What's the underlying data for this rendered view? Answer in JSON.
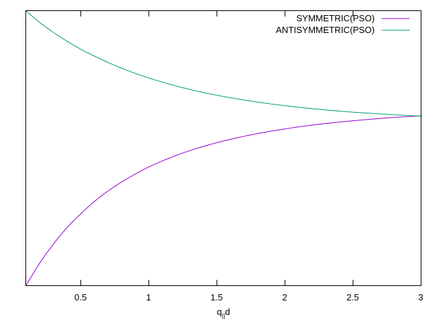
{
  "chart_data": {
    "type": "line",
    "title": "",
    "xlabel": "q",
    "xlabel_subscript": "||",
    "xlabel_suffix": "d",
    "ylabel": "",
    "xlim": [
      0.1,
      3.0
    ],
    "ylim": [
      0,
      1
    ],
    "xticks": [
      0.5,
      1,
      1.5,
      2,
      2.5,
      3
    ],
    "xtick_labels": [
      "0.5",
      "1",
      "1.5",
      "2",
      "2.5",
      "3"
    ],
    "yticks_visible": false,
    "grid": false,
    "legend_position": "top-right",
    "series": [
      {
        "name": "SYMMETRIC(PSO)",
        "color": "#9400d3",
        "x": [
          0.1,
          0.2,
          0.3,
          0.4,
          0.5,
          0.6,
          0.7,
          0.8,
          0.9,
          1.0,
          1.2,
          1.4,
          1.6,
          1.8,
          2.0,
          2.2,
          2.4,
          2.6,
          2.8,
          3.0
        ],
        "y": [
          0.0,
          0.081,
          0.15,
          0.21,
          0.26,
          0.305,
          0.343,
          0.376,
          0.405,
          0.431,
          0.473,
          0.506,
          0.532,
          0.553,
          0.57,
          0.584,
          0.595,
          0.604,
          0.612,
          0.618
        ]
      },
      {
        "name": "ANTISYMMETRIC(PSO)",
        "color": "#009e73",
        "x": [
          0.1,
          0.2,
          0.3,
          0.4,
          0.5,
          0.6,
          0.7,
          0.8,
          0.9,
          1.0,
          1.2,
          1.4,
          1.6,
          1.8,
          2.0,
          2.2,
          2.4,
          2.6,
          2.8,
          3.0
        ],
        "y": [
          1.0,
          0.958,
          0.922,
          0.89,
          0.861,
          0.836,
          0.813,
          0.792,
          0.773,
          0.756,
          0.727,
          0.703,
          0.684,
          0.668,
          0.655,
          0.644,
          0.635,
          0.628,
          0.622,
          0.617
        ]
      }
    ]
  }
}
